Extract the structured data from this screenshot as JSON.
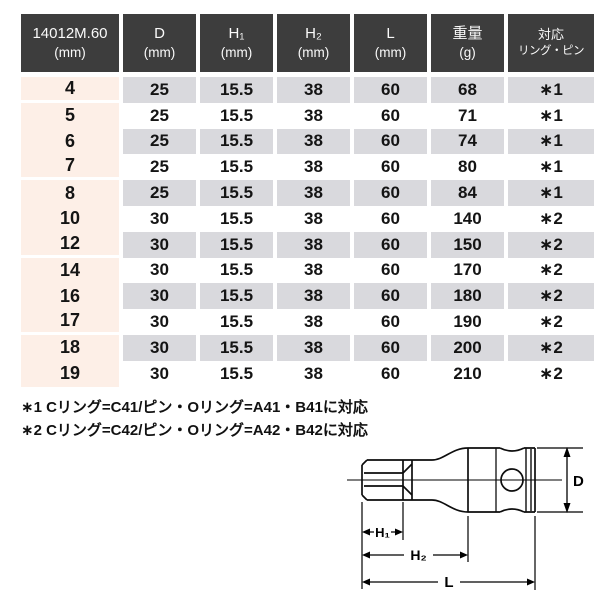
{
  "table": {
    "headers": [
      {
        "line1": "14012M.60",
        "line2": "(mm)"
      },
      {
        "line1": "D",
        "line2": "(mm)"
      },
      {
        "line1": "H₁",
        "line2": "(mm)"
      },
      {
        "line1": "H₂",
        "line2": "(mm)"
      },
      {
        "line1": "L",
        "line2": "(mm)"
      },
      {
        "line1": "重量",
        "line2": "(g)"
      },
      {
        "line1": "対応",
        "line2": "リング・ピン"
      }
    ],
    "rows": [
      {
        "size": "4",
        "d": "25",
        "h1": "15.5",
        "h2": "38",
        "l": "60",
        "weight": "68",
        "ring": "∗1"
      },
      {
        "size": "5",
        "d": "25",
        "h1": "15.5",
        "h2": "38",
        "l": "60",
        "weight": "71",
        "ring": "∗1"
      },
      {
        "size": "6",
        "d": "25",
        "h1": "15.5",
        "h2": "38",
        "l": "60",
        "weight": "74",
        "ring": "∗1"
      },
      {
        "size": "7",
        "d": "25",
        "h1": "15.5",
        "h2": "38",
        "l": "60",
        "weight": "80",
        "ring": "∗1"
      },
      {
        "size": "8",
        "d": "25",
        "h1": "15.5",
        "h2": "38",
        "l": "60",
        "weight": "84",
        "ring": "∗1"
      },
      {
        "size": "10",
        "d": "30",
        "h1": "15.5",
        "h2": "38",
        "l": "60",
        "weight": "140",
        "ring": "∗2"
      },
      {
        "size": "12",
        "d": "30",
        "h1": "15.5",
        "h2": "38",
        "l": "60",
        "weight": "150",
        "ring": "∗2"
      },
      {
        "size": "14",
        "d": "30",
        "h1": "15.5",
        "h2": "38",
        "l": "60",
        "weight": "170",
        "ring": "∗2"
      },
      {
        "size": "16",
        "d": "30",
        "h1": "15.5",
        "h2": "38",
        "l": "60",
        "weight": "180",
        "ring": "∗2"
      },
      {
        "size": "17",
        "d": "30",
        "h1": "15.5",
        "h2": "38",
        "l": "60",
        "weight": "190",
        "ring": "∗2"
      },
      {
        "size": "18",
        "d": "30",
        "h1": "15.5",
        "h2": "38",
        "l": "60",
        "weight": "200",
        "ring": "∗2"
      },
      {
        "size": "19",
        "d": "30",
        "h1": "15.5",
        "h2": "38",
        "l": "60",
        "weight": "210",
        "ring": "∗2"
      }
    ]
  },
  "notes": [
    "∗1 Cリング=C41/ピン・Oリング=A41・B41に対応",
    "∗2 Cリング=C42/ピン・Oリング=A42・B42に対応"
  ],
  "diagram": {
    "labels": {
      "d": "D",
      "h1": "H₁",
      "h2": "H₂",
      "l": "L"
    }
  },
  "colors": {
    "header_bg": "#3d3d3d",
    "header_text": "#fafafa",
    "row_stripe_gray": "#d9d9dd",
    "first_column_bg": "#fdefe7",
    "text": "#141414"
  }
}
